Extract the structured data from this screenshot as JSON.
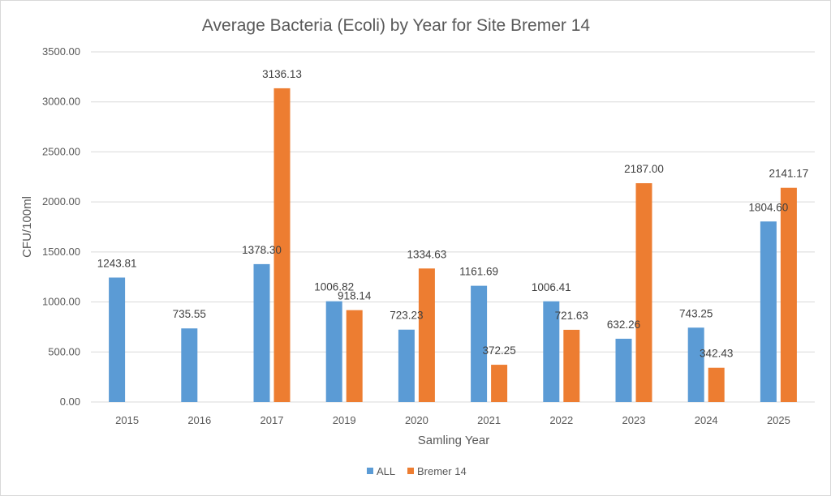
{
  "chart_data": {
    "type": "bar",
    "title": "Average Bacteria (Ecoli) by Year for Site Bremer 14",
    "xlabel": "Samling Year",
    "ylabel": "CFU/100ml",
    "categories": [
      "2015",
      "2016",
      "2017",
      "2019",
      "2020",
      "2021",
      "2022",
      "2023",
      "2024",
      "2025"
    ],
    "series": [
      {
        "name": "ALL",
        "color": "#5b9bd5",
        "values": [
          1243.81,
          735.55,
          1378.3,
          1006.82,
          723.23,
          1161.69,
          1006.41,
          632.26,
          743.25,
          1804.6
        ],
        "labels": [
          "1243.81",
          "735.55",
          "1378.30",
          "1006.82",
          "723.23",
          "1161.69",
          "1006.41",
          "632.26",
          "743.25",
          "1804.60"
        ]
      },
      {
        "name": "Bremer 14",
        "color": "#ed7d31",
        "values": [
          null,
          null,
          3136.13,
          918.14,
          1334.63,
          372.25,
          721.63,
          2187.0,
          342.43,
          2141.17
        ],
        "labels": [
          null,
          null,
          "3136.13",
          "918.14",
          "1334.63",
          "372.25",
          "721.63",
          "2187.00",
          "342.43",
          "2141.17"
        ]
      }
    ],
    "ylim": [
      0,
      3500
    ],
    "yticks": [
      "0.00",
      "500.00",
      "1000.00",
      "1500.00",
      "2000.00",
      "2500.00",
      "3000.00",
      "3500.00"
    ],
    "grid": true,
    "legend_position": "bottom"
  }
}
